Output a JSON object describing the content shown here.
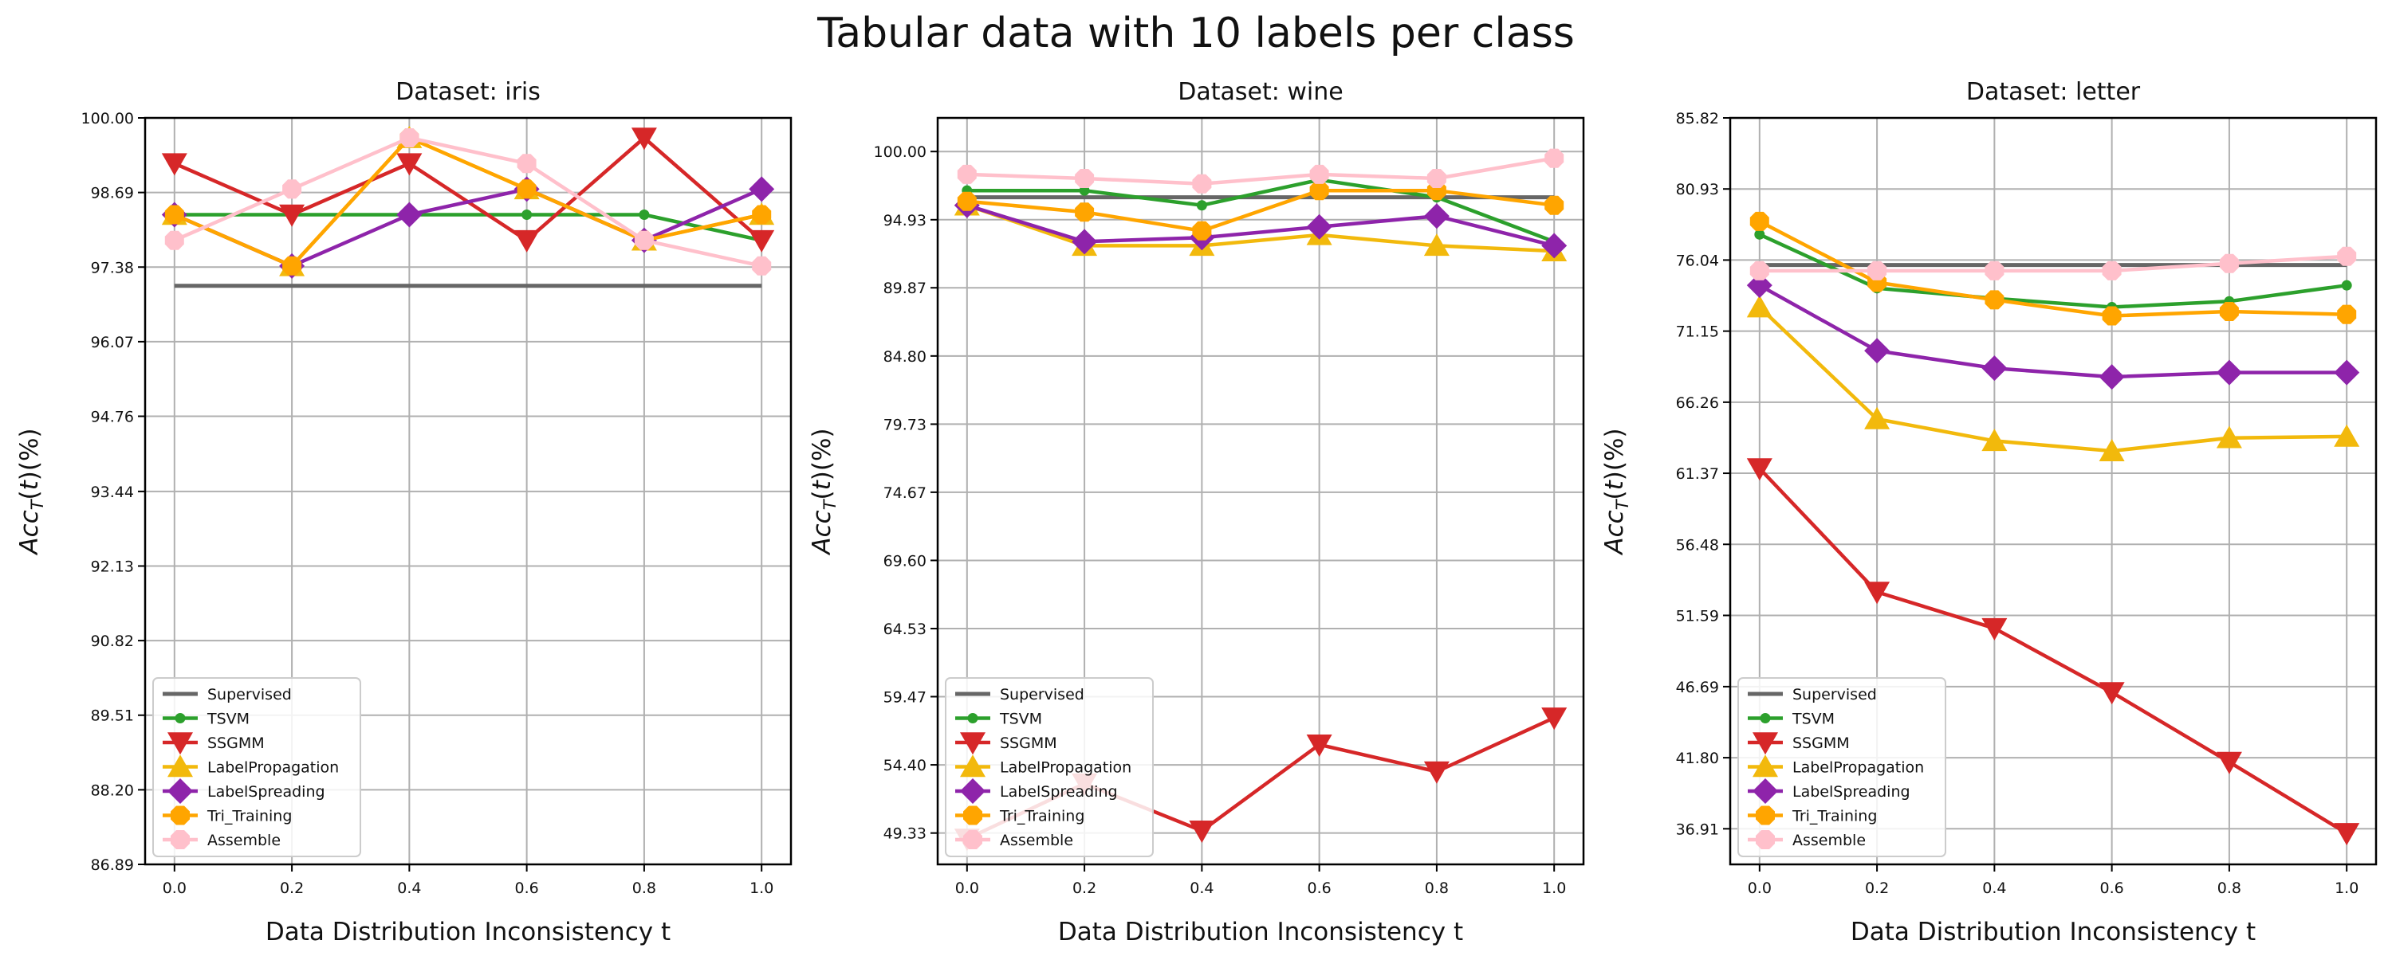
{
  "figure_title": "Tabular data with 10 labels per class",
  "colors": {
    "Supervised": "#666666",
    "TSVM": "#2ca02c",
    "SSGMM": "#d62728",
    "LabelPropagation": "#f2b90c",
    "LabelSpreading": "#8e24aa",
    "Tri_Training": "#ffa500",
    "Assemble": "#ffc0cb"
  },
  "markers": {
    "Supervised": "none",
    "TSVM": "circle-small",
    "SSGMM": "triangle-down",
    "LabelPropagation": "triangle-up",
    "LabelSpreading": "diamond",
    "Tri_Training": "octagon",
    "Assemble": "octagon"
  },
  "chart_data": [
    {
      "type": "line",
      "title": "Dataset: iris",
      "xlabel": "Data Distribution Inconsistency t",
      "ylabel": "Acc_T(t)(%)",
      "x": [
        0.0,
        0.2,
        0.4,
        0.6,
        0.8,
        1.0
      ],
      "x_ticks": [
        "0.0",
        "0.2",
        "0.4",
        "0.6",
        "0.8",
        "1.0"
      ],
      "xlim": [
        -0.05,
        1.05
      ],
      "ylim": [
        86.89,
        100.0
      ],
      "y_ticks": [
        "86.89",
        "88.20",
        "89.51",
        "90.82",
        "92.13",
        "93.44",
        "94.76",
        "96.07",
        "97.38",
        "98.69",
        "100.00"
      ],
      "grid": true,
      "legend": "lower-left",
      "series": [
        {
          "name": "Supervised",
          "values": [
            97.05,
            97.05,
            97.05,
            97.05,
            97.05,
            97.05
          ]
        },
        {
          "name": "TSVM",
          "values": [
            98.3,
            98.3,
            98.3,
            98.3,
            98.3,
            97.85
          ]
        },
        {
          "name": "SSGMM",
          "values": [
            99.2,
            98.3,
            99.2,
            97.85,
            99.65,
            97.85
          ]
        },
        {
          "name": "LabelPropagation",
          "values": [
            98.3,
            97.4,
            99.65,
            98.75,
            97.85,
            98.3
          ]
        },
        {
          "name": "LabelSpreading",
          "values": [
            98.3,
            97.4,
            98.3,
            98.75,
            97.85,
            98.75
          ]
        },
        {
          "name": "Tri_Training",
          "values": [
            98.3,
            97.4,
            99.65,
            98.75,
            97.85,
            98.3
          ]
        },
        {
          "name": "Assemble",
          "values": [
            97.85,
            98.75,
            99.65,
            99.2,
            97.85,
            97.4
          ]
        }
      ]
    },
    {
      "type": "line",
      "title": "Dataset: wine",
      "xlabel": "Data Distribution Inconsistency t",
      "ylabel": "Acc_T(t)(%)",
      "x": [
        0.0,
        0.2,
        0.4,
        0.6,
        0.8,
        1.0
      ],
      "x_ticks": [
        "0.0",
        "0.2",
        "0.4",
        "0.6",
        "0.8",
        "1.0"
      ],
      "xlim": [
        -0.05,
        1.05
      ],
      "ylim": [
        47.0,
        102.5
      ],
      "y_ticks": [
        "49.33",
        "54.40",
        "59.47",
        "64.53",
        "69.60",
        "74.67",
        "79.73",
        "84.80",
        "89.87",
        "94.93",
        "100.00"
      ],
      "grid": true,
      "legend": "lower-left",
      "series": [
        {
          "name": "Supervised",
          "values": [
            96.6,
            96.6,
            96.6,
            96.6,
            96.6,
            96.6
          ]
        },
        {
          "name": "TSVM",
          "values": [
            97.1,
            97.1,
            96.0,
            97.9,
            96.6,
            93.3
          ]
        },
        {
          "name": "SSGMM",
          "values": [
            48.9,
            53.0,
            49.5,
            55.9,
            53.9,
            57.9
          ]
        },
        {
          "name": "LabelPropagation",
          "values": [
            96.0,
            93.0,
            93.0,
            93.8,
            93.0,
            92.6
          ]
        },
        {
          "name": "LabelSpreading",
          "values": [
            96.0,
            93.3,
            93.6,
            94.4,
            95.2,
            93.0
          ]
        },
        {
          "name": "Tri_Training",
          "values": [
            96.3,
            95.5,
            94.1,
            97.1,
            97.1,
            96.0
          ]
        },
        {
          "name": "Assemble",
          "values": [
            98.3,
            98.0,
            97.6,
            98.3,
            98.0,
            99.5
          ]
        }
      ]
    },
    {
      "type": "line",
      "title": "Dataset: letter",
      "xlabel": "Data Distribution Inconsistency t",
      "ylabel": "Acc_T(t)(%)",
      "x": [
        0.0,
        0.2,
        0.4,
        0.6,
        0.8,
        1.0
      ],
      "x_ticks": [
        "0.0",
        "0.2",
        "0.4",
        "0.6",
        "0.8",
        "1.0"
      ],
      "xlim": [
        -0.05,
        1.05
      ],
      "ylim": [
        34.46,
        85.82
      ],
      "y_ticks": [
        "36.91",
        "41.80",
        "46.69",
        "51.59",
        "56.48",
        "61.37",
        "66.26",
        "71.15",
        "76.04",
        "80.93",
        "85.82"
      ],
      "grid": true,
      "legend": "lower-left",
      "series": [
        {
          "name": "Supervised",
          "values": [
            75.7,
            75.7,
            75.7,
            75.7,
            75.7,
            75.7
          ]
        },
        {
          "name": "TSVM",
          "values": [
            77.8,
            74.1,
            73.4,
            72.8,
            73.2,
            74.3
          ]
        },
        {
          "name": "SSGMM",
          "values": [
            61.7,
            53.2,
            50.7,
            46.3,
            41.5,
            36.6
          ]
        },
        {
          "name": "LabelPropagation",
          "values": [
            72.8,
            65.1,
            63.6,
            62.9,
            63.8,
            63.9
          ]
        },
        {
          "name": "LabelSpreading",
          "values": [
            74.3,
            69.8,
            68.6,
            68.0,
            68.3,
            68.3
          ]
        },
        {
          "name": "Tri_Training",
          "values": [
            78.7,
            74.5,
            73.3,
            72.2,
            72.5,
            72.3
          ]
        },
        {
          "name": "Assemble",
          "values": [
            75.3,
            75.3,
            75.3,
            75.3,
            75.8,
            76.3
          ]
        }
      ]
    }
  ]
}
